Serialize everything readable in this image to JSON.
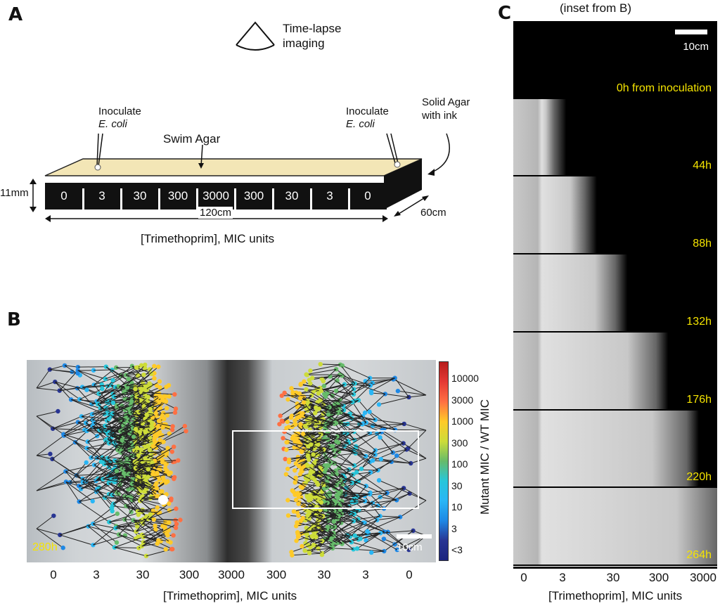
{
  "panel_a": {
    "label": "A",
    "imaging": "Time-lapse\nimaging",
    "inoculate_left": "Inoculate",
    "ecoli_left": "E. coli",
    "inoculate_right": "Inoculate",
    "ecoli_right": "E. coli",
    "swim_agar": "Swim Agar",
    "solid_agar": "Solid Agar\nwith ink",
    "height": "11mm",
    "length": "120cm",
    "depth": "60cm",
    "segments": [
      "0",
      "3",
      "30",
      "300",
      "3000",
      "300",
      "30",
      "3",
      "0"
    ],
    "axis_label": "[Trimethoprim], MIC units"
  },
  "panel_b": {
    "label": "B",
    "time": "280h",
    "scale": "10cm",
    "x_ticks": [
      "0",
      "3",
      "30",
      "300",
      "3000",
      "300",
      "30",
      "3",
      "0"
    ],
    "axis_label": "[Trimethoprim], MIC units",
    "colorbar_title": "Mutant MIC / WT MIC",
    "colorbar_ticks": [
      "10000",
      "3000",
      "1000",
      "300",
      "100",
      "30",
      "10",
      "3",
      "<3"
    ],
    "colorbar_colors": [
      "#b71c1c",
      "#e53935",
      "#ff7043",
      "#ffca28",
      "#cddc39",
      "#66bb6a",
      "#26c6da",
      "#29b6f6",
      "#1e88e5",
      "#283593",
      "#1a237e"
    ]
  },
  "panel_c": {
    "label": "C",
    "title": "(inset from B)",
    "scale": "10cm",
    "frames": [
      "0h from inoculation",
      "44h",
      "88h",
      "132h",
      "176h",
      "220h",
      "264h"
    ],
    "frame_fronts": [
      0.0,
      0.2,
      0.35,
      0.5,
      0.7,
      0.85,
      1.0
    ],
    "x_ticks": [
      "0",
      "3",
      "30",
      "300",
      "3000"
    ],
    "axis_label": "[Trimethoprim], MIC units"
  }
}
